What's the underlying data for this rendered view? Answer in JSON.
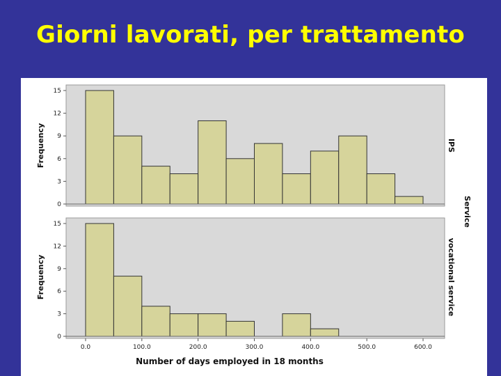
{
  "slide": {
    "title": "Giorni lavorati, per trattamento"
  },
  "colors": {
    "background": "#333399",
    "title": "#ffff00",
    "bar_fill": "#d6d49b",
    "bar_stroke": "#333333",
    "panel": "#d9d9d9"
  },
  "chart_data": {
    "type": "bar",
    "xlabel": "Number of days employed in 18 months",
    "ylabel": "Frequency",
    "facet_label": "Service",
    "x_ticks": [
      "0.0",
      "100.0",
      "200.0",
      "300.0",
      "400.0",
      "500.0",
      "600.0"
    ],
    "xlim": [
      0,
      600
    ],
    "bin_width": 50,
    "bin_starts": [
      0,
      50,
      100,
      150,
      200,
      250,
      300,
      350,
      400,
      450,
      500,
      550
    ],
    "ylim": [
      0,
      15
    ],
    "y_ticks": [
      "0",
      "3",
      "6",
      "9",
      "12",
      "15"
    ],
    "grid": false,
    "series": [
      {
        "name": "IPS",
        "values": [
          15,
          9,
          5,
          4,
          11,
          6,
          8,
          4,
          7,
          9,
          4,
          1
        ]
      },
      {
        "name": "vocational service",
        "values": [
          15,
          8,
          4,
          3,
          3,
          2,
          0,
          3,
          1,
          0,
          0,
          0
        ]
      }
    ]
  }
}
